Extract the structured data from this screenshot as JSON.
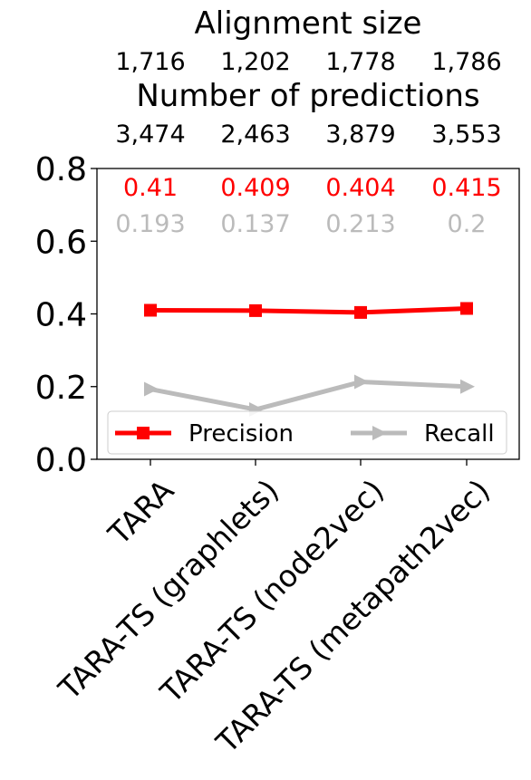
{
  "chart_data": {
    "type": "line",
    "header": {
      "alignment_title": "Alignment size",
      "alignment_values": [
        "1,716",
        "1,202",
        "1,778",
        "1,786"
      ],
      "predictions_title": "Number of predictions",
      "prediction_values": [
        "3,474",
        "2,463",
        "3,879",
        "3,553"
      ]
    },
    "categories": [
      "TARA",
      "TARA-TS (graphlets)",
      "TARA-TS (node2vec)",
      "TARA-TS (metapath2vec)"
    ],
    "series": [
      {
        "name": "Precision",
        "values": [
          0.41,
          0.409,
          0.404,
          0.415
        ],
        "labels": [
          "0.41",
          "0.409",
          "0.404",
          "0.415"
        ],
        "color": "#ff0000",
        "marker": "square"
      },
      {
        "name": "Recall",
        "values": [
          0.193,
          0.137,
          0.213,
          0.2
        ],
        "labels": [
          "0.193",
          "0.137",
          "0.213",
          "0.2"
        ],
        "color": "#bbbbbb",
        "marker": "triangle-right"
      }
    ],
    "ylim": [
      0,
      0.8
    ],
    "yticks": [
      "0.0",
      "0.2",
      "0.4",
      "0.6",
      "0.8"
    ],
    "ytick_values": [
      0,
      0.2,
      0.4,
      0.6,
      0.8
    ],
    "grid": false,
    "legend_position": "lower-center"
  }
}
